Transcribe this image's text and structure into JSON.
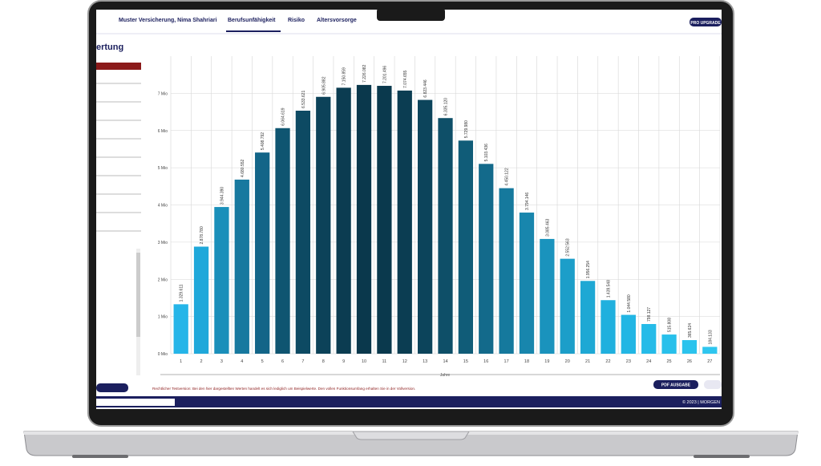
{
  "header": {
    "company": "Muster Versicherung, Nima Shahriari",
    "tabs": [
      "Berufsunfähigkeit",
      "Risiko",
      "Altersvorsorge"
    ],
    "upgrade_button": "PRO UPGRADE"
  },
  "page_title": "ertung",
  "chart_data": {
    "type": "bar",
    "xlabel": "Jahre",
    "categories": [
      "1",
      "2",
      "3",
      "4",
      "5",
      "6",
      "7",
      "8",
      "9",
      "10",
      "11",
      "12",
      "13",
      "14",
      "15",
      "16",
      "17",
      "18",
      "19",
      "20",
      "21",
      "22",
      "23",
      "24",
      "25",
      "26",
      "27"
    ],
    "values": [
      1329611,
      2878780,
      3944390,
      4680552,
      5408792,
      6064619,
      6533621,
      6905882,
      7150859,
      7226082,
      7201496,
      7074655,
      6823446,
      6335120,
      5729980,
      5103436,
      4450122,
      3794146,
      3085463,
      2552563,
      1956254,
      1439548,
      1044580,
      798127,
      515808,
      365624,
      184133
    ],
    "value_labels": [
      "1.329.611",
      "2.878.780",
      "3.944.390",
      "4.680.552",
      "5.408.792",
      "6.064.619",
      "6.533.621",
      "6.905.882",
      "7.150.859",
      "7.226.082",
      "7.201.496",
      "7.074.655",
      "6.823.446",
      "6.335.120",
      "5.729.980",
      "5.103.436",
      "4.450.122",
      "3.794.146",
      "3.085.463",
      "2.552.563",
      "1.956.254",
      "1.439.548",
      "1.044.580",
      "798.127",
      "515.808",
      "365.624",
      "184.133"
    ],
    "colors": [
      "#25b5e8",
      "#1fa8da",
      "#1a8fba",
      "#17799f",
      "#136588",
      "#0f5571",
      "#0d4a63",
      "#0c4259",
      "#0b3c51",
      "#0a384c",
      "#0a394d",
      "#0b3d52",
      "#0c445b",
      "#0e4f68",
      "#105c78",
      "#136a8b",
      "#15799d",
      "#1886ad",
      "#1a93bd",
      "#1c9ec9",
      "#1ea8d4",
      "#20b0de",
      "#22b6e4",
      "#25bbe8",
      "#28c0eb",
      "#2bc3ed",
      "#2ec6ef"
    ],
    "ylim": [
      0,
      8000000
    ],
    "yticks": [
      {
        "value": 0,
        "label": "0 Mio"
      },
      {
        "value": 1000000,
        "label": "1 Mio"
      },
      {
        "value": 2000000,
        "label": "2 Mio"
      },
      {
        "value": 3000000,
        "label": "3 Mio"
      },
      {
        "value": 4000000,
        "label": "4 Mio"
      },
      {
        "value": 5000000,
        "label": "5 Mio"
      },
      {
        "value": 6000000,
        "label": "6 Mio"
      },
      {
        "value": 7000000,
        "label": "7 Mio"
      }
    ],
    "grid": true
  },
  "notice": "Rechtlicher Testversion: Bei den hier dargestellten Werten handelt es sich lediglich um Beispielwerte. Den vollen Funktionsumfang erhalten Sie in der Vollversion.",
  "pdf_button": "PDF AUSGABE",
  "footer": "© 2023 | MORGEN"
}
